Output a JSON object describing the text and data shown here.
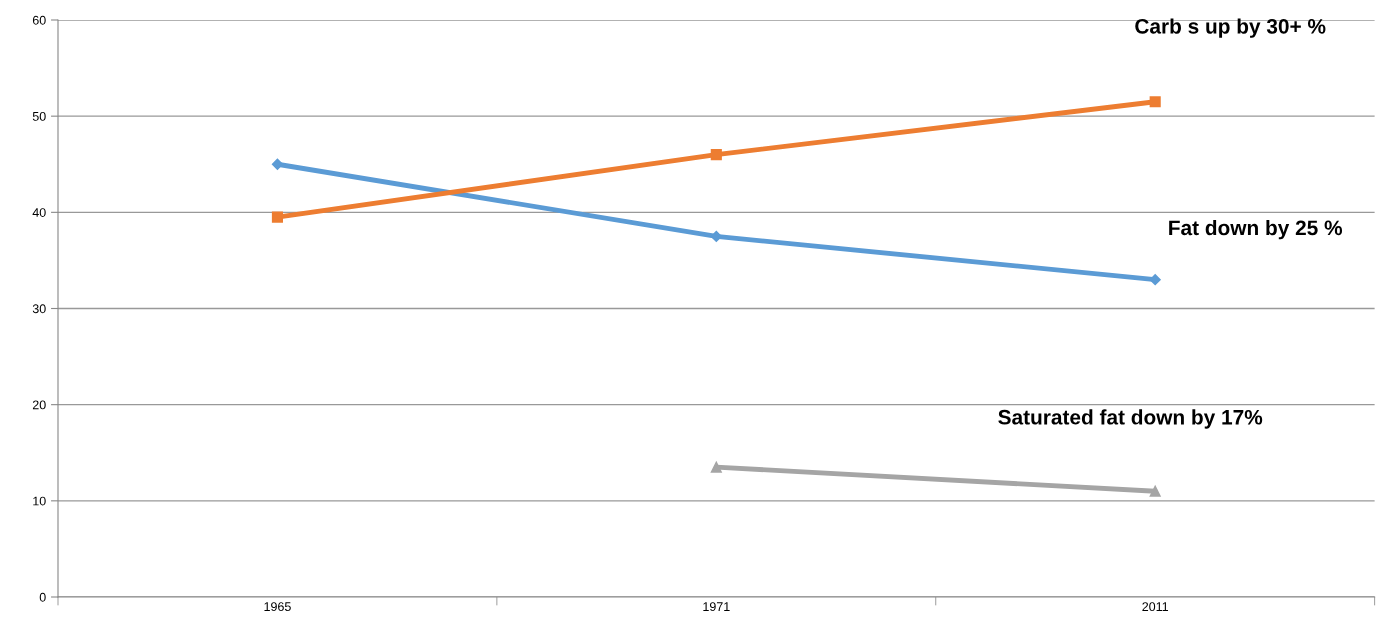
{
  "chart_data": {
    "type": "line",
    "categories": [
      "1965",
      "1971",
      "2011"
    ],
    "series": [
      {
        "name": "Fat down by 25 %",
        "color": "#5b9bd5",
        "marker": "diamond",
        "values": [
          45,
          37.5,
          33
        ]
      },
      {
        "name": "Carb s up by 30+ %",
        "color": "#ed7d31",
        "marker": "square",
        "values": [
          39.5,
          46,
          51.5
        ]
      },
      {
        "name": "Saturated fat down by 17%",
        "color": "#a5a5a5",
        "marker": "triangle",
        "values": [
          null,
          13.5,
          11
        ]
      }
    ],
    "ylim": [
      0,
      60
    ],
    "yticks": [
      0,
      10,
      20,
      30,
      40,
      50,
      60
    ],
    "grid": "y",
    "legend": false
  }
}
